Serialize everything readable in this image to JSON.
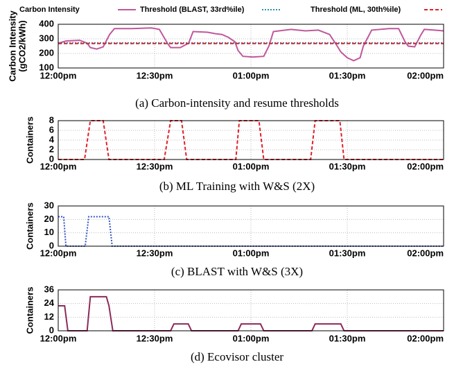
{
  "chart_data": [
    {
      "type": "line",
      "legend": true,
      "grid": true,
      "caption": "(a) Carbon-intensity and resume thresholds",
      "ylabel": [
        "Carbon Intensity",
        "(gCO2/kWh)"
      ],
      "xlim": [
        0,
        120
      ],
      "xticks": [
        {
          "value": 0,
          "label": "12:00pm"
        },
        {
          "value": 30,
          "label": "12:30pm"
        },
        {
          "value": 60,
          "label": "01:00pm"
        },
        {
          "value": 90,
          "label": "01:30pm"
        },
        {
          "value": 120,
          "label": "02:00pm"
        }
      ],
      "ylim": [
        100,
        400
      ],
      "yticks": [
        100,
        200,
        300,
        400
      ],
      "series": [
        {
          "name": "Carbon Intensity",
          "color": "#c0579a",
          "dash": "solid",
          "x": [
            0,
            2.4,
            6.7,
            9,
            10,
            12,
            14,
            16,
            17.5,
            23,
            29,
            31.5,
            34,
            35,
            38,
            40.6,
            42,
            46.5,
            49,
            51,
            53,
            55,
            56,
            57.5,
            60.6,
            64,
            65.6,
            67,
            72.5,
            77,
            81,
            84.5,
            86.6,
            88,
            90,
            92,
            94,
            95,
            97.6,
            103,
            106,
            108,
            109,
            111,
            113,
            114,
            120
          ],
          "values": [
            270,
            285,
            290,
            270,
            240,
            230,
            245,
            330,
            370,
            370,
            375,
            365,
            270,
            240,
            240,
            270,
            350,
            345,
            335,
            330,
            310,
            280,
            220,
            180,
            175,
            180,
            250,
            350,
            365,
            355,
            360,
            330,
            260,
            210,
            170,
            150,
            170,
            250,
            360,
            370,
            370,
            280,
            250,
            245,
            330,
            365,
            355
          ]
        },
        {
          "name": "Threshold (BLAST, 33rd%ile)",
          "color": "#2a8fb0",
          "dash": "dotted",
          "x": [
            0,
            120
          ],
          "values": [
            272,
            272
          ]
        },
        {
          "name": "Threshold (ML, 30th%ile)",
          "color": "#e0202a",
          "dash": "dashed",
          "x": [
            0,
            120
          ],
          "values": [
            268,
            268
          ]
        }
      ]
    },
    {
      "type": "line",
      "legend": false,
      "grid": true,
      "caption": "(b) ML Training with W&S (2X)",
      "ylabel": [
        "Containers"
      ],
      "xlim": [
        0,
        120
      ],
      "xticks": [
        {
          "value": 0,
          "label": "12:00pm"
        },
        {
          "value": 30,
          "label": "12:30pm"
        },
        {
          "value": 60,
          "label": "01:00pm"
        },
        {
          "value": 90,
          "label": "01:30pm"
        },
        {
          "value": 120,
          "label": "02:00pm"
        }
      ],
      "ylim": [
        0,
        8
      ],
      "yticks": [
        0,
        2,
        4,
        6,
        8
      ],
      "series": [
        {
          "color": "#e0202a",
          "dash": "dashed",
          "x": [
            0,
            8.2,
            10,
            14,
            15.8,
            33,
            35,
            38.4,
            40,
            55.3,
            56.4,
            62.5,
            64,
            78.6,
            80,
            87.7,
            89,
            120
          ],
          "values": [
            0,
            0,
            8,
            8,
            0,
            0,
            8,
            8,
            0,
            0,
            8,
            8,
            0,
            0,
            8,
            8,
            0,
            0
          ]
        }
      ]
    },
    {
      "type": "line",
      "legend": false,
      "grid": true,
      "caption": "(c) BLAST with W&S (3X)",
      "ylabel": [
        "Containers"
      ],
      "xlim": [
        0,
        120
      ],
      "xticks": [
        {
          "value": 0,
          "label": "12:00pm"
        },
        {
          "value": 30,
          "label": "12:30pm"
        },
        {
          "value": 60,
          "label": "01:00pm"
        },
        {
          "value": 90,
          "label": "01:30pm"
        },
        {
          "value": 120,
          "label": "02:00pm"
        }
      ],
      "ylim": [
        0,
        30
      ],
      "yticks": [
        0,
        10,
        20,
        30
      ],
      "series": [
        {
          "color": "#3050c8",
          "dash": "dotted",
          "x": [
            0,
            1.7,
            2.4,
            8.4,
            9.5,
            15.8,
            16.8,
            120
          ],
          "values": [
            22,
            22,
            0,
            0,
            22,
            22,
            0,
            0
          ]
        }
      ]
    },
    {
      "type": "line",
      "legend": false,
      "grid": true,
      "caption": "(d) Ecovisor cluster",
      "ylabel": [
        "Containers"
      ],
      "xlim": [
        0,
        120
      ],
      "xticks": [
        {
          "value": 0,
          "label": "12:00pm"
        },
        {
          "value": 30,
          "label": "12:30pm"
        },
        {
          "value": 60,
          "label": "01:00pm"
        },
        {
          "value": 90,
          "label": "01:30pm"
        },
        {
          "value": 120,
          "label": "02:00pm"
        }
      ],
      "ylim": [
        0,
        36
      ],
      "yticks": [
        0,
        12,
        24,
        36
      ],
      "series": [
        {
          "color": "#8b2a5a",
          "dash": "solid",
          "x": [
            0,
            2,
            3,
            9,
            10,
            15,
            15.8,
            17,
            35,
            36,
            40.5,
            41.5,
            56,
            57,
            63,
            64,
            79,
            80,
            88,
            89,
            120
          ],
          "values": [
            22,
            22,
            0,
            0,
            30,
            30,
            22,
            0,
            0,
            6,
            6,
            0,
            0,
            6,
            6,
            0,
            0,
            6,
            6,
            0,
            0
          ]
        }
      ]
    }
  ]
}
